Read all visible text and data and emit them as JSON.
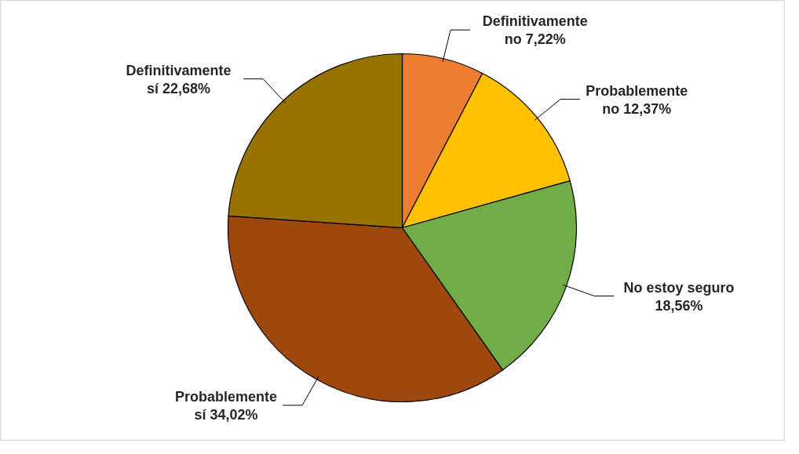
{
  "chart_data": {
    "type": "pie",
    "categories": [
      "Definitivamente no",
      "Probablemente no",
      "No estoy seguro",
      "Probablemente sí",
      "Definitivamente sí"
    ],
    "values": [
      7.22,
      12.37,
      18.56,
      34.02,
      22.68
    ],
    "value_labels": [
      "7,22%",
      "12,37%",
      "18,56%",
      "34,02%",
      "22,68%"
    ],
    "colors": [
      "#ed7d31",
      "#ffc000",
      "#70ad47",
      "#9e480e",
      "#997300"
    ],
    "legend": false
  }
}
